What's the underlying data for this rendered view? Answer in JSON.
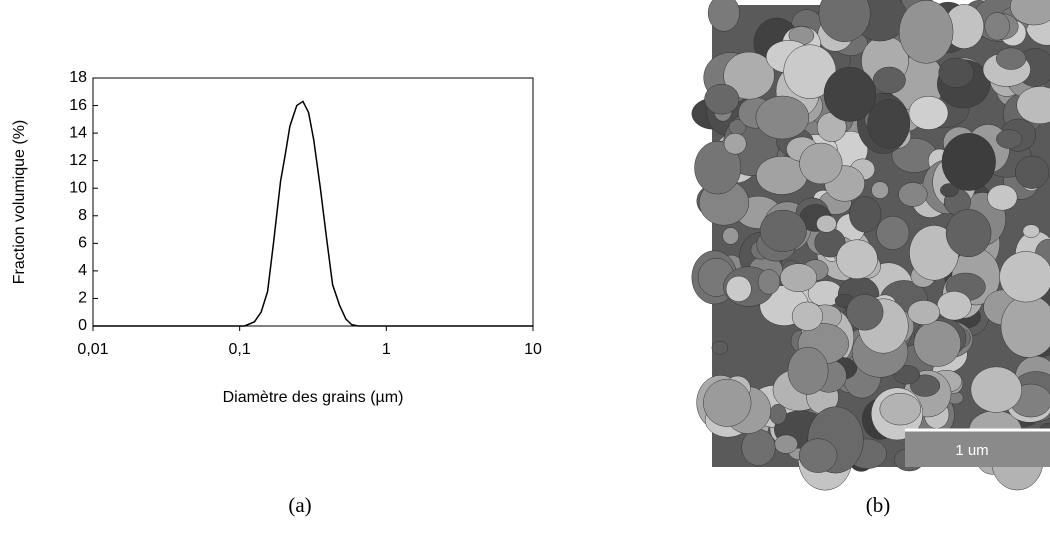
{
  "chart_data": {
    "type": "line",
    "xlabel": "Diamètre des grains (µm)",
    "ylabel": "Fraction volumique (%)",
    "x_scale": "log",
    "x": [
      0.01,
      0.05,
      0.1,
      0.108,
      0.126,
      0.14,
      0.155,
      0.17,
      0.19,
      0.205,
      0.22,
      0.245,
      0.27,
      0.295,
      0.32,
      0.355,
      0.39,
      0.43,
      0.48,
      0.53,
      0.58,
      0.64,
      1,
      10
    ],
    "values": [
      0,
      0,
      0,
      0,
      0.3,
      1,
      2.5,
      6,
      10.5,
      12.5,
      14.5,
      16,
      16.3,
      15.5,
      13.5,
      10,
      6.5,
      3,
      1.5,
      0.5,
      0.1,
      0,
      0,
      0
    ],
    "color": "#000000",
    "xlim": [
      0.01,
      10
    ],
    "xticks": [
      {
        "value": 0.01,
        "label": "0,01"
      },
      {
        "value": 0.1,
        "label": "0,1"
      },
      1,
      10
    ],
    "ylim": [
      0,
      18
    ],
    "yticks": [
      0,
      2,
      4,
      6,
      8,
      10,
      12,
      14,
      16,
      18
    ]
  },
  "figure": {
    "captions": [
      "(a)",
      "(b)"
    ],
    "scale_bar": "1 um"
  }
}
